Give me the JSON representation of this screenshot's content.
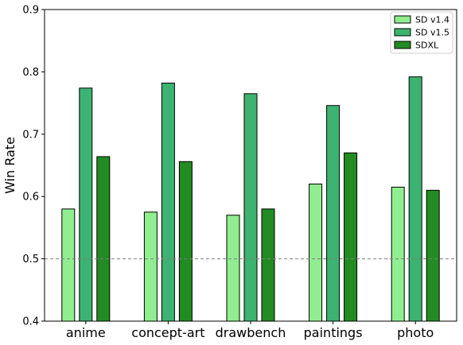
{
  "chart_data": {
    "type": "bar",
    "title": "",
    "xlabel": "",
    "ylabel": "Win Rate",
    "ylim": [
      0.4,
      0.9
    ],
    "yticks": [
      "0.4",
      "0.5",
      "0.6",
      "0.7",
      "0.8",
      "0.9"
    ],
    "categories": [
      "anime",
      "concept-art",
      "drawbench",
      "paintings",
      "photo"
    ],
    "series": [
      {
        "name": "SD v1.4",
        "color": "#90ee90",
        "values": [
          0.58,
          0.575,
          0.57,
          0.62,
          0.615
        ]
      },
      {
        "name": "SD v1.5",
        "color": "#3cb371",
        "values": [
          0.774,
          0.782,
          0.765,
          0.746,
          0.792
        ]
      },
      {
        "name": "SDXL",
        "color": "#228b22",
        "values": [
          0.664,
          0.656,
          0.58,
          0.67,
          0.61
        ]
      }
    ],
    "reference_line": {
      "value": 0.5,
      "style": "dashed",
      "color": "#808080"
    },
    "legend_position": "top-right",
    "grid": false
  }
}
